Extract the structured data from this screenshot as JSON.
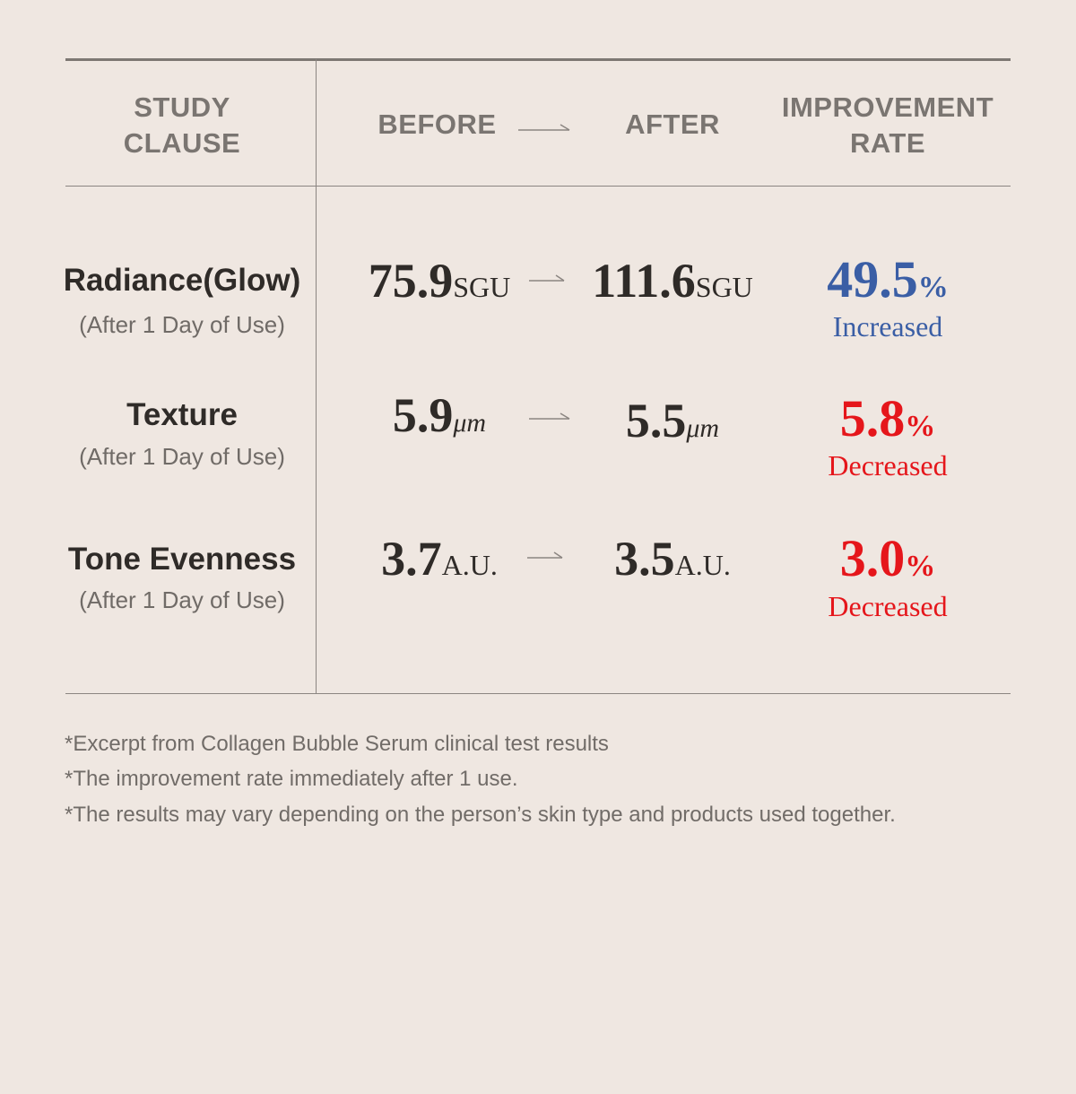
{
  "header": {
    "study_clause": [
      "STUDY",
      "CLAUSE"
    ],
    "before": "BEFORE",
    "after": "AFTER",
    "improvement_rate": [
      "IMPROVEMENT",
      "RATE"
    ]
  },
  "rows": [
    {
      "title": "Radiance(Glow)",
      "subtitle": "(After 1 Day of Use)",
      "before_value": "75.9",
      "before_unit": "SGU",
      "after_value": "111.6",
      "after_unit": "SGU",
      "rate_value": "49.5",
      "rate_unit": "%",
      "rate_word": "Increased",
      "rate_color": "#3a5ea5"
    },
    {
      "title": "Texture",
      "subtitle": "(After 1 Day of Use)",
      "before_value": "5.9",
      "before_unit": "μm",
      "after_value": "5.5",
      "after_unit": "μm",
      "rate_value": "5.8",
      "rate_unit": "%",
      "rate_word": "Decreased",
      "rate_color": "#e5161b"
    },
    {
      "title": "Tone Evenness",
      "subtitle": "(After 1 Day of Use)",
      "before_value": "3.7",
      "before_unit": "A.U.",
      "after_value": "3.5",
      "after_unit": "A.U.",
      "rate_value": "3.0",
      "rate_unit": "%",
      "rate_word": "Decreased",
      "rate_color": "#e5161b"
    }
  ],
  "notes": [
    "*Excerpt from Collagen Bubble Serum clinical test results",
    "*The improvement rate immediately after 1 use.",
    "*The results may vary depending on the person’s skin type and products used together."
  ],
  "icons": {
    "arrow": "right-arrow-icon"
  },
  "colors": {
    "background": "#efe7e1",
    "increase": "#3a5ea5",
    "decrease": "#e5161b"
  }
}
